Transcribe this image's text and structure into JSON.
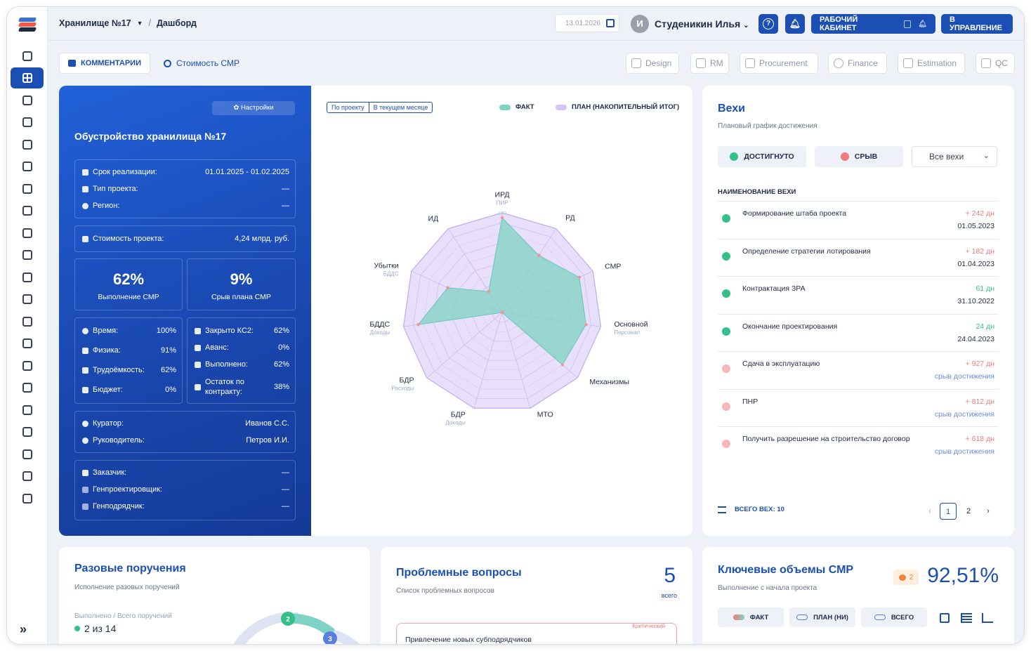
{
  "breadcrumb": {
    "storage": "Хранилище №17",
    "page": "Дашборд"
  },
  "header": {
    "date": "13.01.2026",
    "avatar_letter": "И",
    "user_name": "Студеникин Илья",
    "help_label": "?",
    "workspace_label": "РАБОЧИЙ КАБИНЕТ",
    "manage_label": "В УПРАВЛЕНИЕ"
  },
  "subnav": {
    "comments_label": "КОММЕНТАРИИ",
    "cost_label": "Стоимость СМР",
    "modules": [
      "Design",
      "RM",
      "Procurement",
      "Finance",
      "Estimation",
      "QC"
    ]
  },
  "project": {
    "settings_label": "Настройки",
    "title": "Обустройство хранилища №17",
    "info": [
      {
        "k": "Срок реализации:",
        "v": "01.01.2025 - 01.02.2025"
      },
      {
        "k": "Тип проекта:",
        "v": "—"
      },
      {
        "k": "Регион:",
        "v": "—"
      }
    ],
    "cost": {
      "k": "Стоимость проекта:",
      "v": "4,24 млрд. руб."
    },
    "kpi": [
      {
        "value": "62%",
        "label": "Выполнение СМР"
      },
      {
        "value": "9%",
        "label": "Срыв плана СМР"
      }
    ],
    "left_stats": [
      {
        "k": "Время:",
        "v": "100%"
      },
      {
        "k": "Физика:",
        "v": "91%"
      },
      {
        "k": "Трудоёмкость:",
        "v": "62%"
      },
      {
        "k": "Бюджет:",
        "v": "0%"
      }
    ],
    "right_stats": [
      {
        "k": "Закрыто КС2:",
        "v": "62%"
      },
      {
        "k": "Аванс:",
        "v": "0%"
      },
      {
        "k": "Выполнено:",
        "v": "62%"
      },
      {
        "k": "Остаток по контракту:",
        "v": "38%"
      }
    ],
    "people": [
      {
        "k": "Куратор:",
        "v": "Иванов С.С."
      },
      {
        "k": "Руководитель:",
        "v": "Петров И.И."
      }
    ],
    "orgs": [
      {
        "k": "Заказчик:",
        "v": "—"
      },
      {
        "k": "Генпроектировщик:",
        "v": "—"
      },
      {
        "k": "Генподрядчик:",
        "v": "—"
      }
    ]
  },
  "radar": {
    "toggle": [
      "По проекту",
      "В текущем месяце"
    ],
    "legend_fact": "ФАКТ",
    "legend_plan": "ПЛАН (НАКОПИТЕЛЬНЫЙ ИТОГ)",
    "colors": {
      "fact": "#7fd3c4",
      "plan": "#d6c4f5"
    }
  },
  "chart_data": {
    "type": "radar",
    "categories": [
      "ИРД",
      "РД",
      "СМР",
      "Основной",
      "Механизмы",
      "МТО",
      "БДР",
      "БДР",
      "БДДС",
      "Убытки",
      "ИД"
    ],
    "sublabels": [
      "ПИР",
      "",
      "",
      "Персонал",
      "",
      "",
      "Доходы",
      "Расходы",
      "Доходы",
      "БДДС",
      ""
    ],
    "ticks": [
      "10",
      "20",
      "30",
      "40",
      "50",
      "60",
      "70",
      "80",
      "90",
      "100"
    ],
    "rmax": 100,
    "series": [
      {
        "name": "ФАКТ",
        "values": [
          95,
          68,
          85,
          85,
          80,
          0,
          0,
          0,
          85,
          60,
          25
        ]
      },
      {
        "name": "ПЛАН (НАКОПИТЕЛЬНЫЙ ИТОГ)",
        "values": [
          100,
          100,
          100,
          100,
          100,
          100,
          100,
          100,
          100,
          100,
          100
        ]
      }
    ]
  },
  "milestones": {
    "title": "Вехи",
    "subtitle": "Плановый график достижения",
    "achieved_label": "ДОСТИГНУТО",
    "failed_label": "СРЫВ",
    "select_value": "Все вехи",
    "column_header": "НАИМЕНОВАНИЕ ВЕХИ",
    "items": [
      {
        "name": "Формирование штаба проекта",
        "delta": "+ 242 дн",
        "date": "01.05.2023",
        "ok": true
      },
      {
        "name": "Определение стратегии лотирования",
        "delta": "+ 182 дн",
        "date": "01.04.2023",
        "ok": true
      },
      {
        "name": "Контрактация ЗРА",
        "delta": "61 дн",
        "date": "31.10.2022",
        "ok": true
      },
      {
        "name": "Окончание проектирования",
        "delta": "24 дн",
        "date": "24.04.2023",
        "ok": true
      },
      {
        "name": "Сдача в эксплуатацию",
        "delta": "+ 927 дн",
        "date": "срыв достижения",
        "ok": false
      },
      {
        "name": "ПНР",
        "delta": "+ 812 дн",
        "date": "срыв достижения",
        "ok": false
      },
      {
        "name": "Получить разрешение на строительство договор",
        "delta": "+ 618 дн",
        "date": "срыв достижения",
        "ok": false
      }
    ],
    "total_label": "ВСЕГО ВЕХ: 10",
    "pages": [
      "1",
      "2"
    ],
    "colors": {
      "ok": "#35c08a",
      "fail": "#f07b7b"
    }
  },
  "orders": {
    "title": "Разовые поручения",
    "subtitle": "Исполнение разовых поручений",
    "done_caption": "Выполнено / Всего поручений",
    "done_value": "2 из 14",
    "badge_a": "2",
    "badge_b": "3"
  },
  "issues": {
    "title": "Проблемные вопросы",
    "subtitle": "Список проблемных вопросов",
    "count": "5",
    "count_caption": "всего",
    "critical_label": "Критический",
    "first_issue": "Привлечение новых субподрядчиков"
  },
  "volumes": {
    "title": "Ключевые объемы СМР",
    "subtitle": "Выполнение с начала проекта",
    "comment_count": "2",
    "percent": "92,51%",
    "legend": [
      "ФАКТ",
      "ПЛАН (НИ)",
      "ВСЕГО"
    ]
  }
}
